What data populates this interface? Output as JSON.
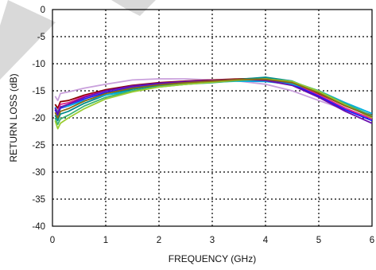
{
  "chart_data": {
    "type": "line",
    "xlabel": "FREQUENCY (GHz)",
    "ylabel": "RETURN LOSS (dB)",
    "xlim": [
      0,
      6
    ],
    "ylim": [
      -40,
      0
    ],
    "xticks": [
      0,
      1,
      2,
      3,
      4,
      5,
      6
    ],
    "xtick_labels": [
      "0",
      "1",
      "2",
      "3",
      "4",
      "5",
      "6"
    ],
    "yticks": [
      0,
      -5,
      -10,
      -15,
      -20,
      -25,
      -30,
      -35,
      -40
    ],
    "ytick_labels": [
      "0",
      "-5",
      "-10",
      "-15",
      "-20",
      "-25",
      "-30",
      "-35",
      "-40"
    ],
    "grid": true,
    "grid_style": "dotted",
    "watermark_color": "#d9d9d9",
    "series": [
      {
        "color": "#c9a0dc",
        "x": [
          0.05,
          0.1,
          0.15,
          0.3,
          0.6,
          1.0,
          1.5,
          2.0,
          2.5,
          3.0,
          3.5,
          4.0,
          4.5,
          5.0,
          5.5,
          6.0
        ],
        "y": [
          -16.0,
          -16.8,
          -15.5,
          -15.2,
          -14.5,
          -13.8,
          -13.0,
          -12.8,
          -12.8,
          -13.0,
          -13.2,
          -13.8,
          -15.0,
          -16.8,
          -18.5,
          -20.0
        ]
      },
      {
        "color": "#8b0000",
        "x": [
          0.05,
          0.1,
          0.15,
          0.3,
          0.6,
          1.0,
          1.5,
          2.0,
          2.5,
          3.0,
          3.5,
          4.0,
          4.5,
          5.0,
          5.5,
          6.0
        ],
        "y": [
          -17.5,
          -18.2,
          -17.0,
          -16.8,
          -15.8,
          -14.8,
          -14.0,
          -13.5,
          -13.2,
          -13.0,
          -12.8,
          -12.7,
          -13.4,
          -15.5,
          -17.8,
          -19.5
        ]
      },
      {
        "color": "#e0218a",
        "x": [
          0.05,
          0.1,
          0.15,
          0.3,
          0.6,
          1.0,
          1.5,
          2.0,
          2.5,
          3.0,
          3.5,
          4.0,
          4.5,
          5.0,
          5.5,
          6.0
        ],
        "y": [
          -18.0,
          -18.8,
          -17.5,
          -17.2,
          -16.0,
          -15.0,
          -14.2,
          -13.7,
          -13.3,
          -13.1,
          -12.9,
          -12.9,
          -13.6,
          -15.8,
          -18.2,
          -20.2
        ]
      },
      {
        "color": "#1a1aff",
        "x": [
          0.05,
          0.1,
          0.15,
          0.3,
          0.6,
          1.0,
          1.5,
          2.0,
          2.5,
          3.0,
          3.5,
          4.0,
          4.5,
          5.0,
          5.5,
          6.0
        ],
        "y": [
          -18.5,
          -19.5,
          -18.2,
          -17.8,
          -16.5,
          -15.3,
          -14.4,
          -13.8,
          -13.4,
          -13.2,
          -13.0,
          -13.0,
          -13.8,
          -16.0,
          -18.5,
          -20.5
        ]
      },
      {
        "color": "#008b8b",
        "x": [
          0.05,
          0.1,
          0.15,
          0.3,
          0.6,
          1.0,
          1.5,
          2.0,
          2.5,
          3.0,
          3.5,
          4.0,
          4.5,
          5.0,
          5.5,
          6.0
        ],
        "y": [
          -19.5,
          -20.5,
          -19.3,
          -18.8,
          -17.3,
          -15.8,
          -14.7,
          -14.0,
          -13.6,
          -13.3,
          -12.9,
          -12.5,
          -13.2,
          -15.2,
          -17.5,
          -19.8
        ]
      },
      {
        "color": "#00b0e0",
        "x": [
          0.05,
          0.1,
          0.15,
          0.3,
          0.6,
          1.0,
          1.5,
          2.0,
          2.5,
          3.0,
          3.5,
          4.0,
          4.5,
          5.0,
          5.5,
          6.0
        ],
        "y": [
          -18.0,
          -19.0,
          -18.0,
          -17.8,
          -16.8,
          -15.8,
          -15.0,
          -14.3,
          -13.8,
          -13.4,
          -13.2,
          -13.3,
          -13.8,
          -15.0,
          -17.2,
          -19.2
        ]
      },
      {
        "color": "#6a0dad",
        "x": [
          0.05,
          0.1,
          0.15,
          0.3,
          0.6,
          1.0,
          1.5,
          2.0,
          2.5,
          3.0,
          3.5,
          4.0,
          4.5,
          5.0,
          5.5,
          6.0
        ],
        "y": [
          -18.2,
          -19.2,
          -18.0,
          -17.5,
          -16.2,
          -15.0,
          -14.1,
          -13.6,
          -13.3,
          -13.1,
          -12.9,
          -13.1,
          -14.0,
          -16.2,
          -18.8,
          -21.0
        ]
      },
      {
        "color": "#3cb371",
        "x": [
          0.05,
          0.1,
          0.15,
          0.3,
          0.6,
          1.0,
          1.5,
          2.0,
          2.5,
          3.0,
          3.5,
          4.0,
          4.5,
          5.0,
          5.5,
          6.0
        ],
        "y": [
          -20.0,
          -21.2,
          -20.2,
          -19.5,
          -17.8,
          -16.2,
          -15.0,
          -14.2,
          -13.8,
          -13.5,
          -13.1,
          -12.8,
          -13.3,
          -15.0,
          -17.4,
          -19.6
        ]
      },
      {
        "color": "#9acd32",
        "x": [
          0.05,
          0.1,
          0.15,
          0.3,
          0.6,
          1.0,
          1.5,
          2.0,
          2.5,
          3.0,
          3.5,
          4.0,
          4.5,
          5.0,
          5.5,
          6.0
        ],
        "y": [
          -20.5,
          -22.0,
          -21.0,
          -20.0,
          -18.3,
          -16.5,
          -15.2,
          -14.3,
          -13.8,
          -13.4,
          -13.0,
          -12.8,
          -13.3,
          -15.1,
          -17.6,
          -20.0
        ]
      },
      {
        "color": "#8b6914",
        "x": [
          0.05,
          0.1,
          0.15,
          0.3,
          0.6,
          1.0,
          1.5,
          2.0,
          2.5,
          3.0,
          3.5,
          4.0,
          4.5,
          5.0,
          5.5,
          6.0
        ],
        "y": [
          -19.0,
          -20.0,
          -18.8,
          -18.3,
          -16.9,
          -15.5,
          -14.5,
          -13.9,
          -13.5,
          -13.2,
          -12.9,
          -12.9,
          -13.5,
          -15.4,
          -17.8,
          -19.8
        ]
      }
    ]
  }
}
